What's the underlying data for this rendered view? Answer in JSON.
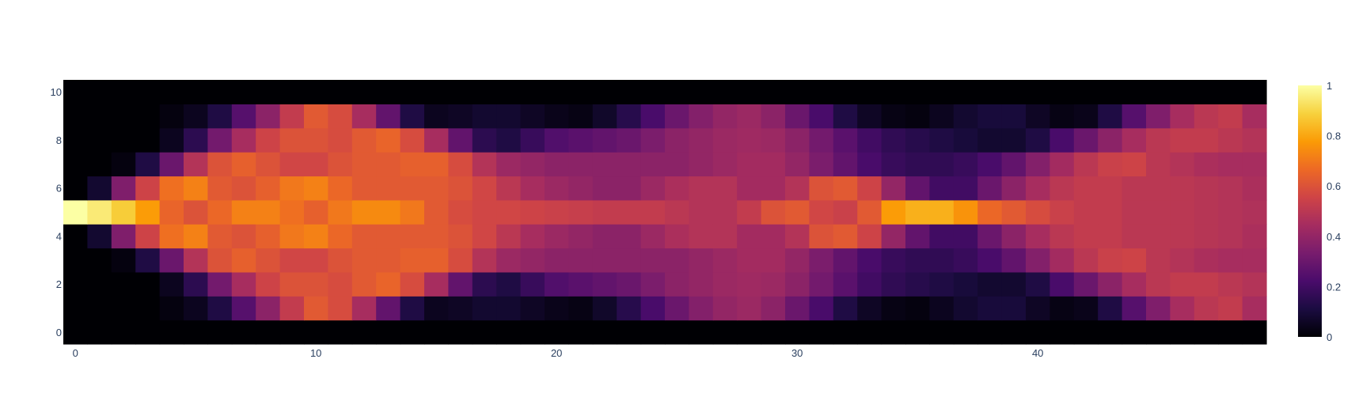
{
  "chart_data": {
    "type": "heatmap",
    "title": "",
    "xlabel": "",
    "ylabel": "",
    "x_range": [
      -0.5,
      49.5
    ],
    "y_range": [
      -0.5,
      10.5
    ],
    "x_ticks": [
      "0",
      "10",
      "20",
      "30",
      "40"
    ],
    "x_tick_values": [
      0,
      10,
      20,
      30,
      40
    ],
    "y_ticks": [
      "0",
      "2",
      "4",
      "6",
      "8",
      "10"
    ],
    "y_tick_values": [
      0,
      2,
      4,
      6,
      8,
      10
    ],
    "colorscale": "inferno",
    "zrange": [
      0,
      1
    ],
    "colorbar_ticks": [
      "0",
      "0.2",
      "0.4",
      "0.6",
      "0.8",
      "1"
    ],
    "colorbar_tick_values": [
      0,
      0.2,
      0.4,
      0.6,
      0.8,
      1
    ],
    "grid": false,
    "z": [
      [
        0.0,
        0.0,
        0.0,
        0.0,
        0.0,
        0.0,
        0.0,
        0.0,
        0.0,
        0.0,
        0.0,
        0.0,
        0.0,
        0.0,
        0.0,
        0.0,
        0.0,
        0.0,
        0.0,
        0.0,
        0.0,
        0.0,
        0.0,
        0.0,
        0.0,
        0.0,
        0.0,
        0.0,
        0.0,
        0.0,
        0.0,
        0.0,
        0.0,
        0.0,
        0.0,
        0.0,
        0.0,
        0.0,
        0.0,
        0.0,
        0.0,
        0.0,
        0.0,
        0.0,
        0.0,
        0.0,
        0.0,
        0.0,
        0.0,
        0.0
      ],
      [
        0.0,
        0.0,
        0.0,
        0.0,
        0.02,
        0.05,
        0.12,
        0.25,
        0.38,
        0.52,
        0.62,
        0.58,
        0.45,
        0.28,
        0.12,
        0.05,
        0.06,
        0.08,
        0.08,
        0.06,
        0.04,
        0.03,
        0.07,
        0.14,
        0.22,
        0.3,
        0.36,
        0.4,
        0.42,
        0.38,
        0.3,
        0.22,
        0.12,
        0.06,
        0.03,
        0.02,
        0.05,
        0.08,
        0.1,
        0.1,
        0.06,
        0.03,
        0.04,
        0.12,
        0.25,
        0.35,
        0.45,
        0.5,
        0.52,
        0.45
      ],
      [
        0.0,
        0.0,
        0.0,
        0.0,
        0.05,
        0.15,
        0.32,
        0.45,
        0.55,
        0.6,
        0.6,
        0.58,
        0.62,
        0.65,
        0.58,
        0.45,
        0.28,
        0.15,
        0.12,
        0.18,
        0.24,
        0.26,
        0.28,
        0.3,
        0.34,
        0.38,
        0.4,
        0.42,
        0.43,
        0.42,
        0.38,
        0.32,
        0.26,
        0.2,
        0.16,
        0.14,
        0.12,
        0.1,
        0.08,
        0.08,
        0.12,
        0.22,
        0.3,
        0.38,
        0.45,
        0.5,
        0.52,
        0.52,
        0.5,
        0.48
      ],
      [
        0.0,
        0.0,
        0.02,
        0.12,
        0.3,
        0.48,
        0.6,
        0.64,
        0.6,
        0.56,
        0.56,
        0.6,
        0.62,
        0.62,
        0.64,
        0.64,
        0.58,
        0.48,
        0.42,
        0.4,
        0.38,
        0.38,
        0.38,
        0.38,
        0.38,
        0.38,
        0.4,
        0.42,
        0.44,
        0.44,
        0.4,
        0.34,
        0.28,
        0.22,
        0.18,
        0.16,
        0.16,
        0.18,
        0.22,
        0.28,
        0.36,
        0.44,
        0.5,
        0.54,
        0.55,
        0.5,
        0.48,
        0.46,
        0.45,
        0.45
      ],
      [
        0.0,
        0.08,
        0.35,
        0.55,
        0.68,
        0.72,
        0.62,
        0.6,
        0.64,
        0.7,
        0.72,
        0.66,
        0.62,
        0.62,
        0.62,
        0.62,
        0.6,
        0.56,
        0.5,
        0.45,
        0.42,
        0.4,
        0.38,
        0.38,
        0.42,
        0.46,
        0.48,
        0.48,
        0.44,
        0.44,
        0.48,
        0.6,
        0.62,
        0.55,
        0.4,
        0.28,
        0.2,
        0.2,
        0.3,
        0.38,
        0.45,
        0.5,
        0.52,
        0.52,
        0.5,
        0.5,
        0.5,
        0.49,
        0.48,
        0.46
      ],
      [
        1.0,
        0.95,
        0.88,
        0.78,
        0.65,
        0.6,
        0.66,
        0.72,
        0.72,
        0.68,
        0.64,
        0.7,
        0.74,
        0.74,
        0.7,
        0.62,
        0.58,
        0.56,
        0.56,
        0.55,
        0.54,
        0.53,
        0.52,
        0.52,
        0.52,
        0.5,
        0.48,
        0.48,
        0.52,
        0.6,
        0.62,
        0.56,
        0.54,
        0.62,
        0.78,
        0.82,
        0.82,
        0.76,
        0.66,
        0.62,
        0.58,
        0.54,
        0.52,
        0.52,
        0.5,
        0.5,
        0.5,
        0.49,
        0.48,
        0.47
      ],
      [
        0.0,
        0.08,
        0.35,
        0.55,
        0.68,
        0.72,
        0.62,
        0.6,
        0.64,
        0.7,
        0.72,
        0.66,
        0.62,
        0.62,
        0.62,
        0.62,
        0.6,
        0.56,
        0.5,
        0.45,
        0.42,
        0.4,
        0.38,
        0.38,
        0.42,
        0.46,
        0.48,
        0.48,
        0.44,
        0.44,
        0.48,
        0.6,
        0.62,
        0.55,
        0.4,
        0.28,
        0.2,
        0.2,
        0.3,
        0.38,
        0.45,
        0.5,
        0.52,
        0.52,
        0.5,
        0.5,
        0.5,
        0.49,
        0.48,
        0.46
      ],
      [
        0.0,
        0.0,
        0.02,
        0.12,
        0.3,
        0.48,
        0.6,
        0.64,
        0.6,
        0.56,
        0.56,
        0.6,
        0.62,
        0.62,
        0.64,
        0.64,
        0.58,
        0.48,
        0.42,
        0.4,
        0.38,
        0.38,
        0.38,
        0.38,
        0.38,
        0.38,
        0.4,
        0.42,
        0.44,
        0.44,
        0.4,
        0.34,
        0.28,
        0.22,
        0.18,
        0.16,
        0.16,
        0.18,
        0.22,
        0.28,
        0.36,
        0.44,
        0.5,
        0.54,
        0.55,
        0.5,
        0.48,
        0.46,
        0.45,
        0.45
      ],
      [
        0.0,
        0.0,
        0.0,
        0.0,
        0.05,
        0.15,
        0.32,
        0.45,
        0.55,
        0.6,
        0.6,
        0.58,
        0.62,
        0.65,
        0.58,
        0.45,
        0.28,
        0.15,
        0.12,
        0.18,
        0.24,
        0.26,
        0.28,
        0.3,
        0.34,
        0.38,
        0.4,
        0.42,
        0.43,
        0.42,
        0.38,
        0.32,
        0.26,
        0.2,
        0.16,
        0.14,
        0.12,
        0.1,
        0.08,
        0.08,
        0.12,
        0.22,
        0.3,
        0.38,
        0.45,
        0.5,
        0.52,
        0.52,
        0.5,
        0.48
      ],
      [
        0.0,
        0.0,
        0.0,
        0.0,
        0.02,
        0.05,
        0.12,
        0.25,
        0.38,
        0.52,
        0.62,
        0.58,
        0.45,
        0.28,
        0.12,
        0.05,
        0.06,
        0.08,
        0.08,
        0.06,
        0.04,
        0.03,
        0.07,
        0.14,
        0.22,
        0.3,
        0.36,
        0.4,
        0.42,
        0.38,
        0.3,
        0.22,
        0.12,
        0.06,
        0.03,
        0.02,
        0.05,
        0.08,
        0.1,
        0.1,
        0.06,
        0.03,
        0.04,
        0.12,
        0.25,
        0.35,
        0.45,
        0.5,
        0.52,
        0.45
      ],
      [
        0.0,
        0.0,
        0.0,
        0.0,
        0.0,
        0.0,
        0.0,
        0.0,
        0.0,
        0.0,
        0.0,
        0.0,
        0.0,
        0.0,
        0.0,
        0.0,
        0.0,
        0.0,
        0.0,
        0.0,
        0.0,
        0.0,
        0.0,
        0.0,
        0.0,
        0.0,
        0.0,
        0.0,
        0.0,
        0.0,
        0.0,
        0.0,
        0.0,
        0.0,
        0.0,
        0.0,
        0.0,
        0.0,
        0.0,
        0.0,
        0.0,
        0.0,
        0.0,
        0.0,
        0.0,
        0.0,
        0.0,
        0.0,
        0.0,
        0.0
      ]
    ]
  }
}
